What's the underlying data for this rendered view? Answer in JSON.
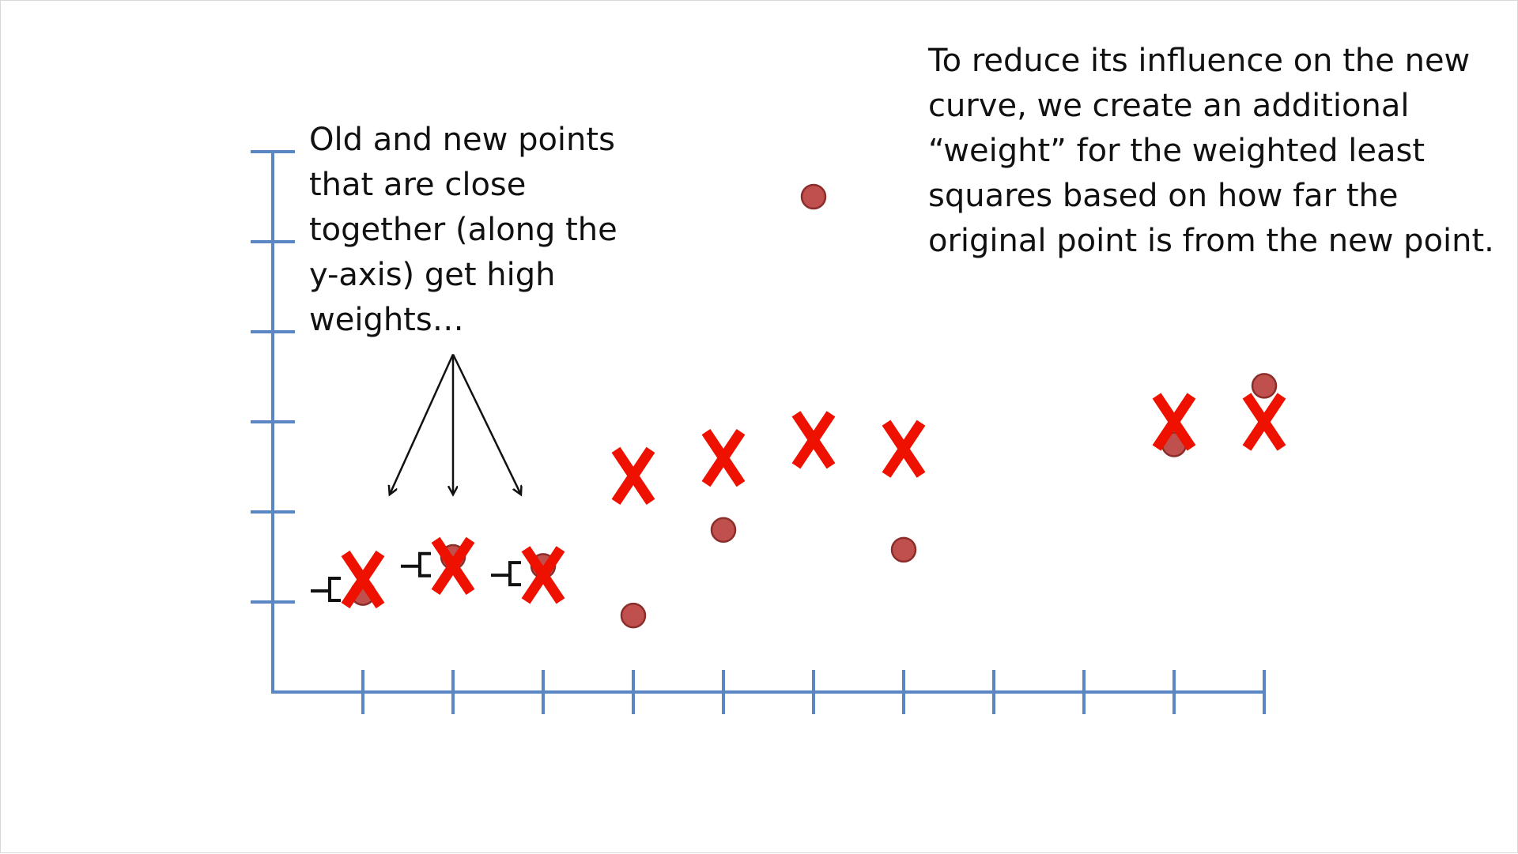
{
  "colors": {
    "axis": "#5b86c4",
    "new_point_marker": "#ee1100",
    "original_point_fill": "#c0504d",
    "original_point_stroke": "#8b2e2b",
    "annotation": "#111111"
  },
  "annotations": {
    "left": [
      "Old and new points",
      "that are close",
      "together (along the",
      "y-axis) get high",
      "weights…"
    ],
    "right": [
      "To reduce its influence on the new",
      "curve, we create an additional",
      "“weight” for the weighted least",
      "squares based on how far the",
      "original point is from the new point."
    ]
  },
  "chart_data": {
    "type": "scatter",
    "xlim": [
      0,
      11
    ],
    "ylim": [
      0,
      6
    ],
    "x_ticks": [
      1,
      2,
      3,
      4,
      5,
      6,
      7,
      8,
      9,
      10,
      11
    ],
    "y_ticks": [
      1,
      2,
      3,
      4,
      5,
      6
    ],
    "tick_labels_shown": false,
    "grid": false,
    "series": [
      {
        "marker": "circle",
        "points": [
          {
            "x": 1,
            "y": 1.1
          },
          {
            "x": 2,
            "y": 1.5
          },
          {
            "x": 3,
            "y": 1.4
          },
          {
            "x": 4,
            "y": 0.85
          },
          {
            "x": 5,
            "y": 1.8
          },
          {
            "x": 6,
            "y": 5.5
          },
          {
            "x": 7,
            "y": 1.58
          },
          {
            "x": 10,
            "y": 2.75
          },
          {
            "x": 11,
            "y": 3.4
          }
        ]
      },
      {
        "marker": "X",
        "points": [
          {
            "x": 1,
            "y": 1.25
          },
          {
            "x": 2,
            "y": 1.4
          },
          {
            "x": 3,
            "y": 1.3
          },
          {
            "x": 4,
            "y": 2.4
          },
          {
            "x": 5,
            "y": 2.6
          },
          {
            "x": 6,
            "y": 2.8
          },
          {
            "x": 7,
            "y": 2.7
          },
          {
            "x": 10,
            "y": 3.0
          },
          {
            "x": 11,
            "y": 3.0
          }
        ]
      }
    ],
    "weight_markers_at_x": [
      1,
      2,
      3
    ],
    "arrows": {
      "from": {
        "x": 2,
        "y": 3.75
      },
      "to": [
        {
          "x": 1.3,
          "y": 2.2
        },
        {
          "x": 2,
          "y": 2.2
        },
        {
          "x": 2.75,
          "y": 2.2
        }
      ]
    }
  }
}
